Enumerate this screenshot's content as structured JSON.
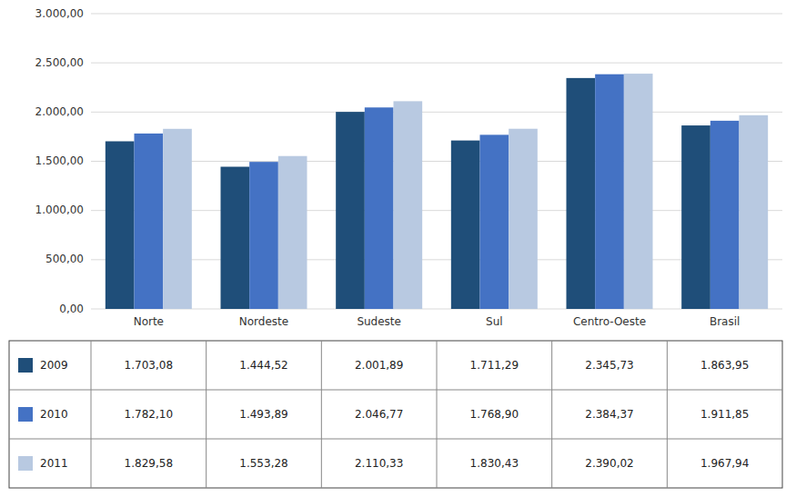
{
  "chart_data": {
    "type": "bar",
    "categories": [
      "Norte",
      "Nordeste",
      "Sudeste",
      "Sul",
      "Centro-Oeste",
      "Brasil"
    ],
    "series": [
      {
        "name": "2009",
        "color": "#1F4E79",
        "values": [
          1703.08,
          1444.52,
          2001.89,
          1711.29,
          2345.73,
          1863.95
        ],
        "value_labels": [
          "1.703,08",
          "1.444,52",
          "2.001,89",
          "1.711,29",
          "2.345,73",
          "1.863,95"
        ]
      },
      {
        "name": "2010",
        "color": "#4472C4",
        "values": [
          1782.1,
          1493.89,
          2046.77,
          1768.9,
          2384.37,
          1911.85
        ],
        "value_labels": [
          "1.782,10",
          "1.493,89",
          "2.046,77",
          "1.768,90",
          "2.384,37",
          "1.911,85"
        ]
      },
      {
        "name": "2011",
        "color": "#B8C9E1",
        "values": [
          1829.58,
          1553.28,
          2110.33,
          1830.43,
          2390.02,
          1967.94
        ],
        "value_labels": [
          "1.829,58",
          "1.553,28",
          "2.110,33",
          "1.830,43",
          "2.390,02",
          "1.967,94"
        ]
      }
    ],
    "ylim": [
      0,
      3000
    ],
    "yticks": [
      {
        "value": 0,
        "label": "0,00"
      },
      {
        "value": 500,
        "label": "500,00"
      },
      {
        "value": 1000,
        "label": "1.000,00"
      },
      {
        "value": 1500,
        "label": "1.500,00"
      },
      {
        "value": 2000,
        "label": "2.000,00"
      },
      {
        "value": 2500,
        "label": "2.500,00"
      },
      {
        "value": 3000,
        "label": "3.000,00"
      }
    ],
    "grid": true,
    "legend": "bottom"
  }
}
